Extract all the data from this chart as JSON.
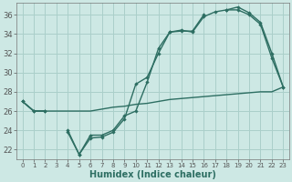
{
  "xlabel": "Humidex (Indice chaleur)",
  "x": [
    0,
    1,
    2,
    3,
    4,
    5,
    6,
    7,
    8,
    9,
    10,
    11,
    12,
    13,
    14,
    15,
    16,
    17,
    18,
    19,
    20,
    21,
    22,
    23
  ],
  "line_flat": [
    27,
    26,
    26,
    26,
    26,
    26,
    26,
    26.2,
    26.4,
    26.5,
    26.7,
    26.8,
    27.0,
    27.2,
    27.3,
    27.4,
    27.5,
    27.6,
    27.7,
    27.8,
    27.9,
    28.0,
    28.0,
    28.5
  ],
  "line_curve1": [
    27,
    26,
    26,
    null,
    24,
    21.5,
    23.5,
    23.5,
    24,
    25.5,
    26,
    29,
    32.5,
    34.2,
    34.3,
    34.3,
    36,
    null,
    36.5,
    36.5,
    36,
    35.0,
    31.5,
    28.5
  ],
  "line_curve2": [
    27,
    26,
    26,
    null,
    23.8,
    21.5,
    23.2,
    23.3,
    23.8,
    25.2,
    28.8,
    29.5,
    32,
    34.2,
    34.4,
    34.2,
    35.8,
    36.3,
    36.5,
    36.8,
    36.2,
    35.2,
    32,
    28.5
  ],
  "line_color": "#2d6e62",
  "bg_color": "#cde8e4",
  "grid_color": "#aacfca",
  "yticks": [
    22,
    24,
    26,
    28,
    30,
    32,
    34,
    36
  ],
  "ylim": [
    21.0,
    37.2
  ],
  "xlim": [
    -0.5,
    23.5
  ]
}
